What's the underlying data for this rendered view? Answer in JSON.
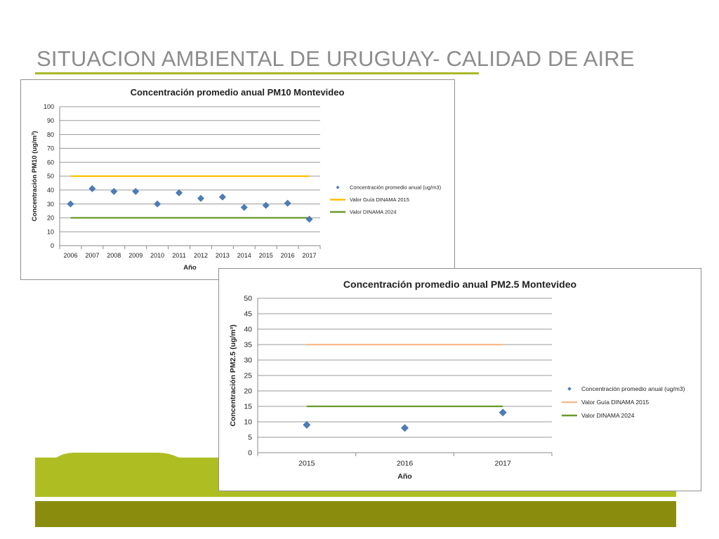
{
  "slide": {
    "title": "SITUACION AMBIENTAL DE URUGUAY- CALIDAD DE AIRE",
    "accent_color": "#a9b826",
    "dark_band_color": "#8a8c0d",
    "light_band_color": "#aebd22"
  },
  "chart_data": [
    {
      "type": "scatter",
      "title": "Concentración promedio anual PM10 Montevideo",
      "xlabel": "Año",
      "ylabel": "Concentración PM10 (ug/m³)",
      "categories": [
        "2006",
        "2007",
        "2008",
        "2009",
        "2010",
        "2011",
        "2012",
        "2013",
        "2014",
        "2015",
        "2016",
        "2017"
      ],
      "ylim": [
        0,
        100
      ],
      "yticks": [
        0,
        10,
        20,
        30,
        40,
        50,
        60,
        70,
        80,
        90,
        100
      ],
      "grid": true,
      "legend_position": "right",
      "series": [
        {
          "name": "Concentración promedio anual (ug/m3)",
          "kind": "marker",
          "color": "#4a7ebb",
          "values": [
            30,
            41,
            39,
            39,
            30,
            38,
            34,
            35,
            27.5,
            29,
            30.5,
            19
          ]
        },
        {
          "name": "Valor Guía DINAMA 2015",
          "kind": "line",
          "color": "#ffc000",
          "values": [
            50,
            50,
            50,
            50,
            50,
            50,
            50,
            50,
            50,
            50,
            50,
            50
          ]
        },
        {
          "name": "Valor DINAMA 2024",
          "kind": "line",
          "color": "#6a9a2b",
          "values": [
            20,
            20,
            20,
            20,
            20,
            20,
            20,
            20,
            20,
            20,
            20,
            20
          ]
        }
      ]
    },
    {
      "type": "scatter",
      "title": "Concentración promedio anual PM2.5 Montevideo",
      "xlabel": "Año",
      "ylabel": "Concentración PM2.5 (ug/m³)",
      "categories": [
        "2015",
        "2016",
        "2017"
      ],
      "ylim": [
        0,
        50
      ],
      "yticks": [
        0,
        5,
        10,
        15,
        20,
        25,
        30,
        35,
        40,
        45,
        50
      ],
      "grid": true,
      "legend_position": "right",
      "series": [
        {
          "name": "Concentración promedio anual (ug/m3)",
          "kind": "marker",
          "color": "#4a7ebb",
          "values": [
            9,
            8,
            13
          ]
        },
        {
          "name": "Valor Guía DINAMA 2015",
          "kind": "line",
          "color": "#f9b98a",
          "values": [
            35,
            35,
            35
          ]
        },
        {
          "name": "Valor DINAMA 2024",
          "kind": "line",
          "color": "#6a9a2b",
          "values": [
            15,
            15,
            15
          ]
        }
      ]
    }
  ]
}
